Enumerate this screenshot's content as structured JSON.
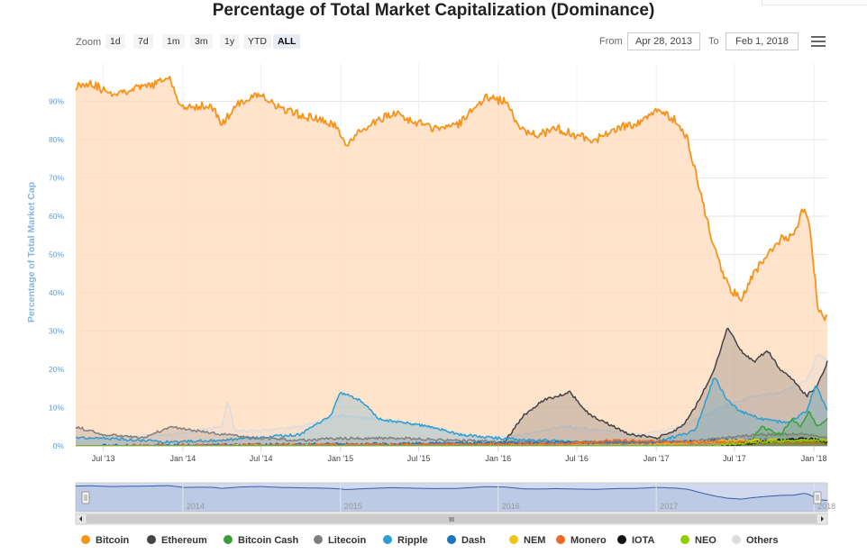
{
  "chart_data": {
    "type": "area",
    "title": "Percentage of Total Market Capitalization (Dominance)",
    "ylabel": "Percentage of Total Market Cap",
    "xlabel": "",
    "ylim": [
      0,
      100
    ],
    "y_ticks": [
      "0%",
      "10%",
      "20%",
      "30%",
      "40%",
      "50%",
      "60%",
      "70%",
      "80%",
      "90%"
    ],
    "x_ticks": [
      "Jul '13",
      "Jan '14",
      "Jul '14",
      "Jan '15",
      "Jul '15",
      "Jan '16",
      "Jul '16",
      "Jan '17",
      "Jul '17",
      "Jan '18"
    ],
    "x_range": [
      "2013-04-28",
      "2018-02-01"
    ],
    "grid": true,
    "legend_position": "bottom",
    "series": [
      {
        "name": "Bitcoin",
        "color": "#f7931a",
        "x": [
          "2013-04-28",
          "2013-06-01",
          "2013-07-15",
          "2013-09-01",
          "2013-10-15",
          "2013-12-01",
          "2014-01-01",
          "2014-02-15",
          "2014-03-15",
          "2014-04-01",
          "2014-05-15",
          "2014-07-01",
          "2014-08-15",
          "2014-10-15",
          "2014-12-15",
          "2015-01-15",
          "2015-03-01",
          "2015-05-01",
          "2015-06-15",
          "2015-08-01",
          "2015-10-01",
          "2015-12-01",
          "2016-01-15",
          "2016-03-01",
          "2016-04-01",
          "2016-05-15",
          "2016-07-01",
          "2016-08-15",
          "2016-10-01",
          "2016-11-15",
          "2017-01-01",
          "2017-02-15",
          "2017-03-15",
          "2017-04-15",
          "2017-05-15",
          "2017-06-15",
          "2017-07-15",
          "2017-08-15",
          "2017-09-15",
          "2017-10-15",
          "2017-11-15",
          "2017-12-10",
          "2017-12-25",
          "2018-01-10",
          "2018-02-01"
        ],
        "values": [
          94,
          95,
          92,
          93,
          94,
          96,
          88,
          89,
          88,
          84,
          90,
          92,
          88,
          86,
          84,
          79,
          83,
          87,
          85,
          83,
          84,
          91,
          90,
          82,
          81,
          83,
          81,
          80,
          83,
          84,
          88,
          85,
          80,
          65,
          52,
          42,
          38,
          45,
          50,
          54,
          55,
          63,
          55,
          36,
          33
        ]
      },
      {
        "name": "Ethereum",
        "color": "#434348",
        "x": [
          "2013-04-28",
          "2015-08-07",
          "2015-12-01",
          "2016-01-15",
          "2016-03-01",
          "2016-04-15",
          "2016-06-15",
          "2016-08-01",
          "2016-11-01",
          "2017-01-01",
          "2017-03-01",
          "2017-04-01",
          "2017-05-15",
          "2017-06-15",
          "2017-07-15",
          "2017-08-15",
          "2017-09-15",
          "2017-10-15",
          "2017-11-15",
          "2017-12-15",
          "2018-01-10",
          "2018-02-01"
        ],
        "values": [
          0,
          0,
          0,
          1,
          8,
          12,
          14,
          8,
          3,
          2,
          5,
          10,
          20,
          31,
          25,
          22,
          25,
          20,
          17,
          13,
          16,
          22
        ]
      },
      {
        "name": "Bitcoin Cash",
        "color": "#3a9f3a",
        "x": [
          "2013-04-28",
          "2017-08-01",
          "2017-09-01",
          "2017-10-15",
          "2017-11-12",
          "2017-12-01",
          "2017-12-20",
          "2018-01-10",
          "2018-02-01"
        ],
        "values": [
          0,
          0,
          5,
          3,
          7,
          5,
          9,
          5,
          7
        ]
      },
      {
        "name": "Litecoin",
        "color": "#7f7f7f",
        "x": [
          "2013-04-28",
          "2013-07-01",
          "2013-10-01",
          "2013-12-01",
          "2014-02-01",
          "2014-04-01",
          "2014-07-01",
          "2014-10-01",
          "2015-01-01",
          "2015-06-01",
          "2016-01-01",
          "2016-06-01",
          "2017-01-01",
          "2017-03-01",
          "2017-06-01",
          "2017-09-01",
          "2017-12-15",
          "2018-02-01"
        ],
        "values": [
          5,
          3,
          2,
          5,
          4,
          3,
          2,
          1.5,
          2,
          2,
          1,
          1,
          1,
          1,
          2,
          3,
          3,
          2
        ]
      },
      {
        "name": "Ripple",
        "color": "#2a9fd6",
        "x": [
          "2013-04-28",
          "2013-07-01",
          "2013-12-01",
          "2014-04-01",
          "2014-10-01",
          "2014-12-10",
          "2015-01-01",
          "2015-02-15",
          "2015-04-01",
          "2015-06-01",
          "2015-08-01",
          "2015-10-01",
          "2016-01-01",
          "2016-07-01",
          "2017-01-01",
          "2017-04-01",
          "2017-05-15",
          "2017-06-15",
          "2017-07-15",
          "2017-09-01",
          "2017-11-01",
          "2017-12-15",
          "2018-01-05",
          "2018-02-01"
        ],
        "values": [
          2,
          2,
          1,
          1.5,
          3,
          8,
          14,
          12,
          7,
          6,
          5,
          3,
          2,
          1,
          1,
          4,
          18,
          12,
          9,
          7,
          6,
          9,
          16,
          9
        ]
      },
      {
        "name": "Dash",
        "color": "#1c75bc",
        "x": [
          "2013-04-28",
          "2015-01-01",
          "2016-06-01",
          "2017-02-01",
          "2017-06-01",
          "2017-12-01",
          "2018-02-01"
        ],
        "values": [
          0,
          0.5,
          0.8,
          1,
          1.5,
          1.5,
          1
        ]
      },
      {
        "name": "NEM",
        "color": "#f0c419",
        "x": [
          "2013-04-28",
          "2016-12-01",
          "2017-04-01",
          "2017-07-01",
          "2017-12-01",
          "2018-02-01"
        ],
        "values": [
          0,
          0.2,
          1,
          1.5,
          1.5,
          1.5
        ]
      },
      {
        "name": "Monero",
        "color": "#f26822",
        "x": [
          "2013-04-28",
          "2016-06-01",
          "2016-10-01",
          "2017-03-01",
          "2017-10-01",
          "2018-02-01"
        ],
        "values": [
          0,
          0.5,
          1.5,
          1,
          1,
          1
        ]
      },
      {
        "name": "IOTA",
        "color": "#111111",
        "x": [
          "2013-04-28",
          "2017-06-13",
          "2017-09-01",
          "2017-12-10",
          "2018-01-10",
          "2018-02-01"
        ],
        "values": [
          0,
          0,
          1,
          2,
          1.5,
          1
        ]
      },
      {
        "name": "NEO",
        "color": "#8dcf00",
        "x": [
          "2013-04-28",
          "2017-05-01",
          "2017-08-15",
          "2017-12-15",
          "2018-02-01"
        ],
        "values": [
          0,
          0,
          1,
          1.5,
          1.5
        ]
      },
      {
        "name": "Others",
        "color": "#dcdcdc",
        "x": [
          "2013-04-28",
          "2013-07-01",
          "2013-12-01",
          "2014-04-01",
          "2014-04-15",
          "2014-05-01",
          "2014-07-01",
          "2014-10-01",
          "2015-01-01",
          "2015-06-01",
          "2015-12-01",
          "2016-03-01",
          "2016-06-01",
          "2016-12-01",
          "2017-03-01",
          "2017-06-01",
          "2017-08-15",
          "2017-10-15",
          "2017-12-15",
          "2018-01-10",
          "2018-02-01"
        ],
        "values": [
          1,
          2,
          3,
          5,
          12,
          4,
          4,
          5,
          8,
          6,
          2,
          3,
          5,
          3,
          5,
          10,
          13,
          14,
          17,
          24,
          22
        ]
      }
    ],
    "navigator": {
      "x_labels": [
        "2014",
        "2015",
        "2016",
        "2017",
        "2018"
      ],
      "series_name": "Bitcoin"
    }
  },
  "controls": {
    "zoom_label": "Zoom",
    "zoom_buttons": [
      "1d",
      "7d",
      "1m",
      "3m",
      "1y",
      "YTD",
      "ALL"
    ],
    "active_zoom": "ALL",
    "from_label": "From",
    "from_value": "Apr 28, 2013",
    "to_label": "To",
    "to_value": "Feb 1, 2018",
    "scroll_grip": "III"
  },
  "icons": {
    "menu": "hamburger-menu-icon",
    "scroll_left": "arrow-left-icon",
    "scroll_right": "arrow-right-icon"
  }
}
